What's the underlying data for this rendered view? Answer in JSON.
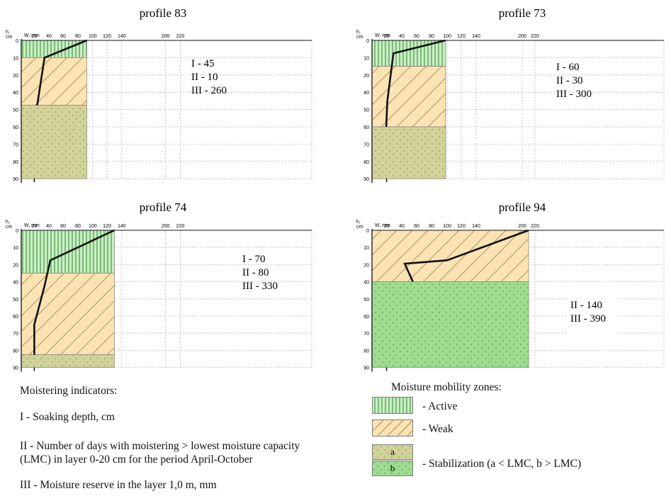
{
  "colors": {
    "active": "#c9eec4",
    "active_hatch": "#2e8a2e",
    "weak": "#fce3b4",
    "weak_hatch": "#a58a55",
    "stab_a": "#d2d29a",
    "stab_a_dot": "#7f8a47",
    "stab_b": "#9fdc8f",
    "stab_b_dot": "#3e8a3e",
    "grid": "#b8b8b8",
    "curve": "#111111"
  },
  "chart_data": [
    {
      "type": "area",
      "title": "profile 83",
      "xlabel": "W, mm",
      "ylabel": "h, cm",
      "x_ticks": [
        "0",
        "20",
        "40",
        "60",
        "80",
        "100",
        "120",
        "140",
        "200",
        "220"
      ],
      "y_ticks": [
        "0",
        "10",
        "20",
        "40",
        "50",
        "60",
        "70",
        "80",
        "90"
      ],
      "zones": [
        {
          "zone": "active",
          "from_tick": 0,
          "to_tick": 1,
          "w_mm": 92
        },
        {
          "zone": "weak",
          "from_tick": 1,
          "to_tick": 3.75,
          "w_mm": 92
        },
        {
          "zone": "stab_a",
          "from_tick": 3.75,
          "to_tick": 8,
          "w_mm": 92
        }
      ],
      "curve": [
        [
          92,
          0
        ],
        [
          34,
          1
        ],
        [
          24,
          3.75
        ]
      ],
      "indicators": [
        "I - 45",
        "II - 10",
        "III - 260"
      ]
    },
    {
      "type": "area",
      "title": "profile 73",
      "xlabel": "W, mm",
      "ylabel": "h, cm",
      "x_ticks": [
        "0",
        "20",
        "40",
        "60",
        "80",
        "100",
        "120",
        "140",
        "200",
        "220"
      ],
      "y_ticks": [
        "0",
        "10",
        "20",
        "40",
        "50",
        "60",
        "70",
        "80",
        "90"
      ],
      "zones": [
        {
          "zone": "active",
          "from_tick": 0,
          "to_tick": 1.5,
          "w_mm": 98
        },
        {
          "zone": "weak",
          "from_tick": 1.5,
          "to_tick": 5,
          "w_mm": 98
        },
        {
          "zone": "stab_a",
          "from_tick": 5,
          "to_tick": 8,
          "w_mm": 98
        }
      ],
      "curve": [
        [
          98,
          0
        ],
        [
          29,
          0.75
        ],
        [
          21,
          3.5
        ],
        [
          19.5,
          5
        ]
      ],
      "indicators": [
        "I - 60",
        "II - 30",
        "III - 300"
      ]
    },
    {
      "type": "area",
      "title": "profile 74",
      "xlabel": "W, mm",
      "ylabel": "h, cm",
      "x_ticks": [
        "0",
        "20",
        "40",
        "60",
        "80",
        "100",
        "120",
        "140",
        "200",
        "220"
      ],
      "y_ticks": [
        "0",
        "10",
        "20",
        "40",
        "50",
        "60",
        "70",
        "80",
        "90"
      ],
      "zones": [
        {
          "zone": "active",
          "from_tick": 0,
          "to_tick": 2.5,
          "w_mm": 130
        },
        {
          "zone": "weak",
          "from_tick": 2.5,
          "to_tick": 7.25,
          "w_mm": 130
        },
        {
          "zone": "stab_a",
          "from_tick": 7.25,
          "to_tick": 8,
          "w_mm": 130
        }
      ],
      "curve": [
        [
          130,
          0
        ],
        [
          42,
          1.75
        ],
        [
          34,
          3.25
        ],
        [
          20,
          5.5
        ],
        [
          20,
          7.25
        ]
      ],
      "indicators": [
        "I - 70",
        "II - 80",
        "III - 330"
      ]
    },
    {
      "type": "area",
      "title": "profile 94",
      "xlabel": "W, mm",
      "ylabel": "h, cm",
      "x_ticks": [
        "0",
        "20",
        "40",
        "60",
        "80",
        "100",
        "120",
        "140",
        "200",
        "220"
      ],
      "y_ticks": [
        "0",
        "10",
        "20",
        "40",
        "50",
        "60",
        "70",
        "80",
        "90"
      ],
      "zones": [
        {
          "zone": "weak",
          "from_tick": 0,
          "to_tick": 3,
          "w_mm": 210
        },
        {
          "zone": "stab_b",
          "from_tick": 3,
          "to_tick": 8,
          "w_mm": 210
        }
      ],
      "curve": [
        [
          210,
          0
        ],
        [
          100,
          1.75
        ],
        [
          44,
          1.95
        ],
        [
          55,
          3
        ]
      ],
      "indicators": [
        "II - 140",
        "III - 390"
      ]
    }
  ],
  "legend": {
    "indicators_title": "Moistering indicators:",
    "ind1": "I - Soaking depth, cm",
    "ind2a": "II -  Number of days with moistering > lowest moisture capacity",
    "ind2b": "(LMC) in layer 0-20 cm for the period April-October",
    "ind3": "III - Moisture reserve in the layer 1,0 m, mm",
    "zones_title": "Moisture mobility zones:",
    "active": "- Active",
    "weak": "-  Weak",
    "stab": "- Stabilization (a < LMC, b > LMC)",
    "letter_a": "a",
    "letter_b": "b"
  }
}
